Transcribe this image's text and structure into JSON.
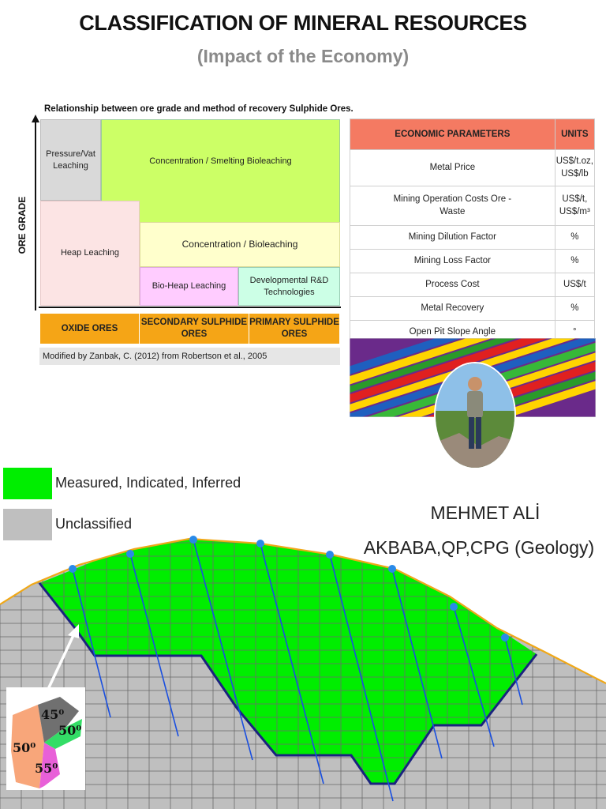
{
  "header": {
    "title": "CLASSIFICATION OF MINERAL RESOURCES",
    "subtitle": "(Impact of the Economy)"
  },
  "recovery_chart": {
    "caption": "Relationship between ore grade and method of recovery Sulphide Ores.",
    "y_axis_label": "ORE GRADE",
    "boxes": {
      "pressure_vat": "Pressure/Vat Leaching",
      "concentration_smelting": "Concentration / Smelting Bioleaching",
      "concentration_bioleaching": "Concentration / Bioleaching",
      "heap_leaching": "Heap Leaching",
      "bio_heap": "Bio-Heap Leaching",
      "developmental": "Developmental R&D Technologies"
    },
    "ore_types": [
      "OXIDE ORES",
      "SECONDARY SULPHIDE ORES",
      "PRIMARY SULPHIDE ORES"
    ],
    "source": "Modified by Zanbak, C. (2012) from Robertson et al., 2005",
    "colors": {
      "green": "#ccff66",
      "grey": "#d9d9d9",
      "pink_light": "#fce4e4",
      "yellow_light": "#ffffcc",
      "pink": "#ffccff",
      "teal": "#ccffe6",
      "orange": "#f5a516"
    }
  },
  "economic_table": {
    "headers": [
      "ECONOMIC PARAMETERS",
      "UNITS"
    ],
    "rows": [
      {
        "param": "Metal Price",
        "unit": "US$/t.oz, US$/lb"
      },
      {
        "param": "Mining Operation Costs Ore - Waste",
        "unit": "US$/t, US$/m³"
      },
      {
        "param": "Mining Dilution Factor",
        "unit": "%"
      },
      {
        "param": "Mining Loss Factor",
        "unit": "%"
      },
      {
        "param": "Process Cost",
        "unit": "US$/t"
      },
      {
        "param": "Metal Recovery",
        "unit": "%"
      },
      {
        "param": "Open Pit Slope Angle",
        "unit": "°"
      }
    ],
    "header_color": "#f47a62"
  },
  "legend": {
    "items": [
      {
        "label": "Measured, Indicated, Inferred",
        "color": "#00ee00"
      },
      {
        "label": "Unclassified",
        "color": "#bfbfbf"
      }
    ]
  },
  "author": {
    "line1": "MEHMET ALİ",
    "line2": "AKBABA,QP,CPG (Geology)"
  },
  "slope_inset": {
    "angles": [
      "45⁰",
      "50⁰",
      "50⁰",
      "55⁰"
    ]
  }
}
